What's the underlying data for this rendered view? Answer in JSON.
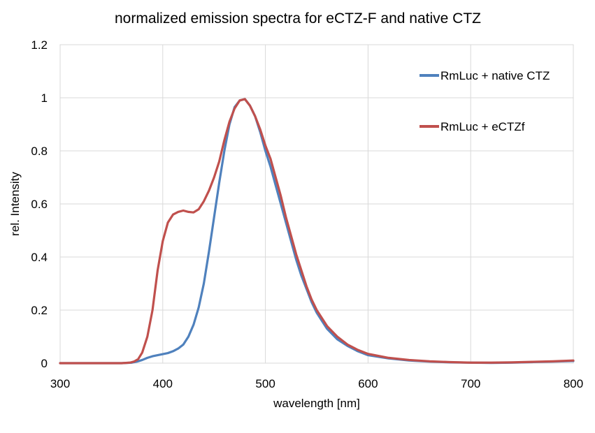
{
  "chart_data": {
    "type": "line",
    "title": "normalized emission spectra for eCTZ-F and native CTZ",
    "xlabel": "wavelength [nm]",
    "ylabel": "rel. Intensity",
    "xlim": [
      300,
      800
    ],
    "ylim": [
      0,
      1.2
    ],
    "xticks": [
      300,
      400,
      500,
      600,
      700,
      800
    ],
    "xtick_labels": [
      "300",
      "400",
      "500",
      "600",
      "700",
      "800"
    ],
    "yticks": [
      0,
      0.2,
      0.4,
      0.6,
      0.8,
      1.0,
      1.2
    ],
    "ytick_labels": [
      "0",
      "0.2",
      "0.4",
      "0.6",
      "0.8",
      "1",
      "1.2"
    ],
    "grid": true,
    "legend_position": "top-right",
    "series": [
      {
        "name": "RmLuc + native CTZ",
        "color": "#4f81bd",
        "x": [
          300,
          360,
          370,
          375,
          380,
          385,
          390,
          395,
          400,
          405,
          410,
          415,
          420,
          425,
          430,
          435,
          440,
          445,
          450,
          455,
          460,
          465,
          470,
          475,
          480,
          485,
          490,
          495,
          500,
          505,
          510,
          515,
          520,
          525,
          530,
          535,
          540,
          545,
          550,
          555,
          560,
          570,
          580,
          590,
          600,
          620,
          640,
          660,
          680,
          700,
          720,
          740,
          760,
          780,
          800
        ],
        "y": [
          0,
          0,
          0.002,
          0.006,
          0.012,
          0.02,
          0.026,
          0.03,
          0.034,
          0.038,
          0.045,
          0.055,
          0.07,
          0.1,
          0.145,
          0.21,
          0.3,
          0.42,
          0.55,
          0.68,
          0.8,
          0.9,
          0.965,
          0.99,
          0.995,
          0.97,
          0.93,
          0.87,
          0.8,
          0.74,
          0.67,
          0.6,
          0.53,
          0.46,
          0.39,
          0.33,
          0.28,
          0.23,
          0.19,
          0.16,
          0.13,
          0.09,
          0.065,
          0.045,
          0.03,
          0.018,
          0.01,
          0.006,
          0.003,
          0.002,
          0.001,
          0.002,
          0.004,
          0.006,
          0.008
        ]
      },
      {
        "name": "RmLuc + eCTZf",
        "color": "#c0504d",
        "x": [
          300,
          360,
          368,
          372,
          376,
          380,
          385,
          390,
          395,
          400,
          405,
          410,
          415,
          420,
          425,
          430,
          435,
          440,
          445,
          450,
          455,
          460,
          465,
          470,
          475,
          480,
          485,
          490,
          495,
          500,
          505,
          510,
          515,
          520,
          525,
          530,
          535,
          540,
          545,
          550,
          555,
          560,
          570,
          580,
          590,
          600,
          620,
          640,
          660,
          680,
          700,
          720,
          740,
          760,
          780,
          800
        ],
        "y": [
          0,
          0,
          0.002,
          0.006,
          0.015,
          0.04,
          0.1,
          0.2,
          0.35,
          0.46,
          0.53,
          0.56,
          0.57,
          0.575,
          0.57,
          0.568,
          0.58,
          0.61,
          0.65,
          0.7,
          0.76,
          0.84,
          0.91,
          0.96,
          0.99,
          0.995,
          0.97,
          0.93,
          0.88,
          0.82,
          0.77,
          0.7,
          0.63,
          0.55,
          0.48,
          0.41,
          0.35,
          0.29,
          0.24,
          0.2,
          0.17,
          0.14,
          0.1,
          0.07,
          0.05,
          0.035,
          0.02,
          0.012,
          0.007,
          0.004,
          0.002,
          0.002,
          0.003,
          0.005,
          0.007,
          0.01
        ]
      }
    ]
  }
}
